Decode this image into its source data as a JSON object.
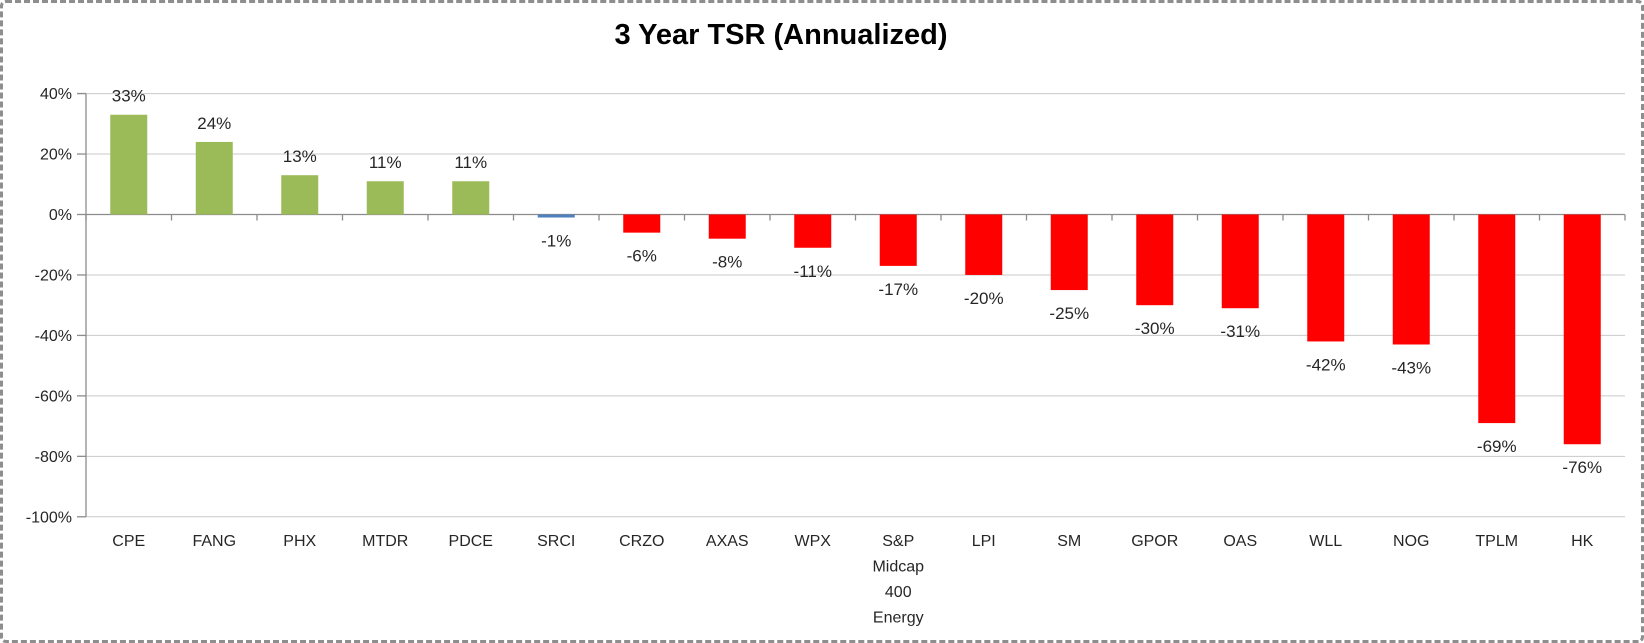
{
  "frame": {
    "background": "#FFFFFF",
    "border_color": "#8E8E8E"
  },
  "chart_data": {
    "type": "bar",
    "title": "3 Year TSR (Annualized)",
    "categories": [
      "CPE",
      "FANG",
      "PHX",
      "MTDR",
      "PDCE",
      "SRCI",
      "CRZO",
      "AXAS",
      "WPX",
      "S&P Midcap 400 Energy",
      "LPI",
      "SM",
      "GPOR",
      "OAS",
      "WLL",
      "NOG",
      "TPLM",
      "HK"
    ],
    "values": [
      33,
      24,
      13,
      11,
      11,
      -1,
      -6,
      -8,
      -11,
      -17,
      -20,
      -25,
      -30,
      -31,
      -42,
      -43,
      -69,
      -76
    ],
    "bar_labels": [
      "33%",
      "24%",
      "13%",
      "11%",
      "11%",
      "-1%",
      "-6%",
      "-8%",
      "-11%",
      "-17%",
      "-20%",
      "-25%",
      "-30%",
      "-31%",
      "-42%",
      "-43%",
      "-69%",
      "-76%"
    ],
    "bar_colors": [
      "#9BBB59",
      "#9BBB59",
      "#9BBB59",
      "#9BBB59",
      "#9BBB59",
      "#4F81BD",
      "#FF0000",
      "#FF0000",
      "#FF0000",
      "#FF0000",
      "#FF0000",
      "#FF0000",
      "#FF0000",
      "#FF0000",
      "#FF0000",
      "#FF0000",
      "#FF0000",
      "#FF0000"
    ],
    "palette": {
      "positive_green": "#9BBB59",
      "neutral_blue": "#4F81BD",
      "negative_red": "#FF0000"
    },
    "y_axis": {
      "tick_labels": [
        "40%",
        "20%",
        "0%",
        "-20%",
        "-40%",
        "-60%",
        "-80%",
        "-100%"
      ],
      "tick_values": [
        40,
        20,
        0,
        -20,
        -40,
        -60,
        -80,
        -100
      ],
      "min": -100,
      "max": 40
    },
    "grid": true,
    "legend": "none",
    "text_color": "#262626",
    "axis_color": "#8C8C8C",
    "gridline_color": "#C9C9C9"
  }
}
